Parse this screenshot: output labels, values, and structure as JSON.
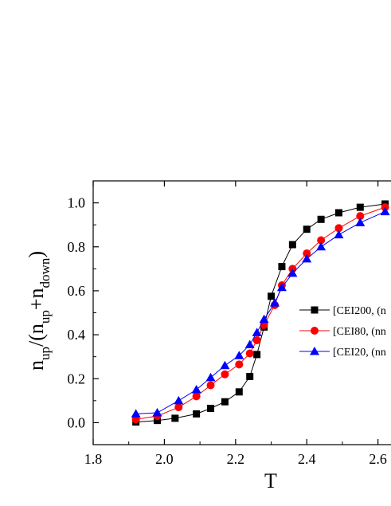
{
  "chart_data": {
    "type": "line",
    "xlabel": "T",
    "ylabel": "n_up/(n_up+n_down)",
    "ylabel_parts": {
      "open": "n",
      "sub1": "up",
      "mid": "/(n",
      "sub2": "up",
      "plus": "+n",
      "sub3": "down",
      "close": ")"
    },
    "xlim": [
      1.8,
      2.65
    ],
    "ylim": [
      -0.1,
      1.1
    ],
    "x_ticks": [
      "1.8",
      "2.0",
      "2.2",
      "2.4",
      "2.6"
    ],
    "y_ticks": [
      "0.0",
      "0.2",
      "0.4",
      "0.6",
      "0.8",
      "1.0"
    ],
    "legend_position": "center-right",
    "series": [
      {
        "name": "[CEI200, (n",
        "color": "#000000",
        "marker": "square",
        "x": [
          1.92,
          1.98,
          2.03,
          2.09,
          2.13,
          2.17,
          2.21,
          2.24,
          2.26,
          2.28,
          2.3,
          2.33,
          2.36,
          2.4,
          2.44,
          2.49,
          2.55,
          2.62
        ],
        "y": [
          0.003,
          0.01,
          0.02,
          0.04,
          0.065,
          0.095,
          0.14,
          0.21,
          0.31,
          0.435,
          0.575,
          0.71,
          0.81,
          0.88,
          0.925,
          0.955,
          0.98,
          0.995
        ]
      },
      {
        "name": "[CEI80, (nn",
        "color": "#ff0000",
        "marker": "circle",
        "x": [
          1.92,
          1.98,
          2.04,
          2.09,
          2.13,
          2.17,
          2.21,
          2.24,
          2.26,
          2.28,
          2.31,
          2.33,
          2.36,
          2.4,
          2.44,
          2.49,
          2.55,
          2.62
        ],
        "y": [
          0.015,
          0.03,
          0.07,
          0.12,
          0.17,
          0.22,
          0.265,
          0.315,
          0.375,
          0.445,
          0.535,
          0.625,
          0.7,
          0.77,
          0.83,
          0.885,
          0.94,
          0.98
        ]
      },
      {
        "name": "[CEI20, (nn",
        "color": "#0000ff",
        "marker": "triangle",
        "x": [
          1.92,
          1.98,
          2.04,
          2.09,
          2.13,
          2.17,
          2.21,
          2.24,
          2.26,
          2.28,
          2.31,
          2.33,
          2.36,
          2.4,
          2.44,
          2.49,
          2.55,
          2.62
        ],
        "y": [
          0.04,
          0.045,
          0.1,
          0.15,
          0.205,
          0.26,
          0.305,
          0.355,
          0.41,
          0.47,
          0.545,
          0.615,
          0.68,
          0.745,
          0.8,
          0.855,
          0.91,
          0.96
        ]
      }
    ]
  }
}
